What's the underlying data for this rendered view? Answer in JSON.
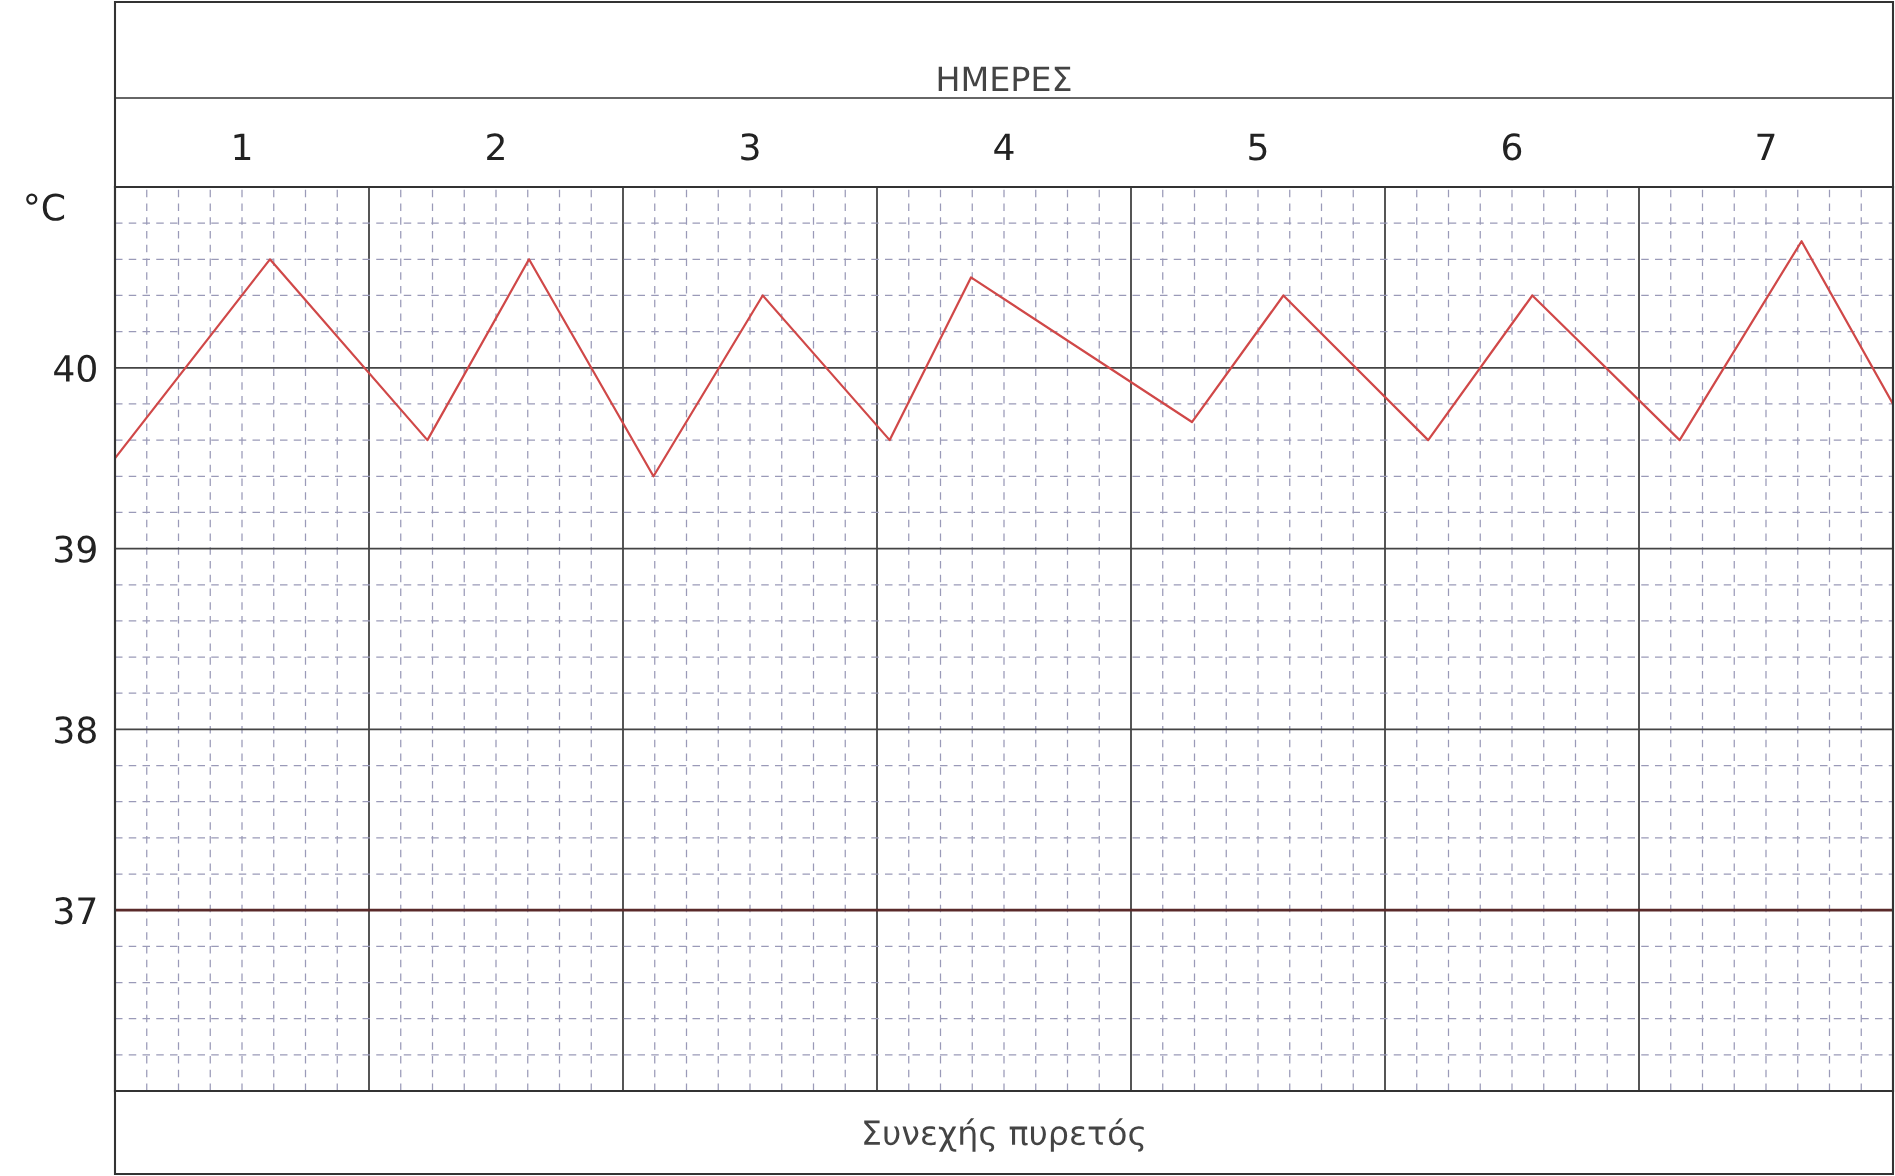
{
  "chart_data": {
    "type": "line",
    "xlabel": "ΗΜΕΡΕΣ",
    "ylabel": "°C",
    "annotations": [
      "Συνεχής πυρετός"
    ],
    "xlim": [
      0,
      7
    ],
    "ylim": [
      36,
      41
    ],
    "xticks": [
      {
        "value": 0.5,
        "label": "1"
      },
      {
        "value": 1.5,
        "label": "2"
      },
      {
        "value": 2.5,
        "label": "3"
      },
      {
        "value": 3.5,
        "label": "4"
      },
      {
        "value": 4.5,
        "label": "5"
      },
      {
        "value": 5.5,
        "label": "6"
      },
      {
        "value": 6.5,
        "label": "7"
      }
    ],
    "yticks": [
      37,
      38,
      39,
      40
    ],
    "grid": true,
    "marker": "none",
    "line_style": "solid",
    "ref_lines": [
      {
        "axis": "y",
        "value": 37,
        "color": "#5a2a2a"
      }
    ],
    "series": [
      {
        "color": "#d04848",
        "x": [
          0,
          0.61,
          1.23,
          1.63,
          2.12,
          2.55,
          3.05,
          3.37,
          4.24,
          4.6,
          5.17,
          5.58,
          6.16,
          6.64,
          7.0
        ],
        "values": [
          39.5,
          40.6,
          39.6,
          40.6,
          39.4,
          40.4,
          39.6,
          40.5,
          39.7,
          40.4,
          39.6,
          40.4,
          39.6,
          40.7,
          39.8
        ]
      }
    ]
  }
}
